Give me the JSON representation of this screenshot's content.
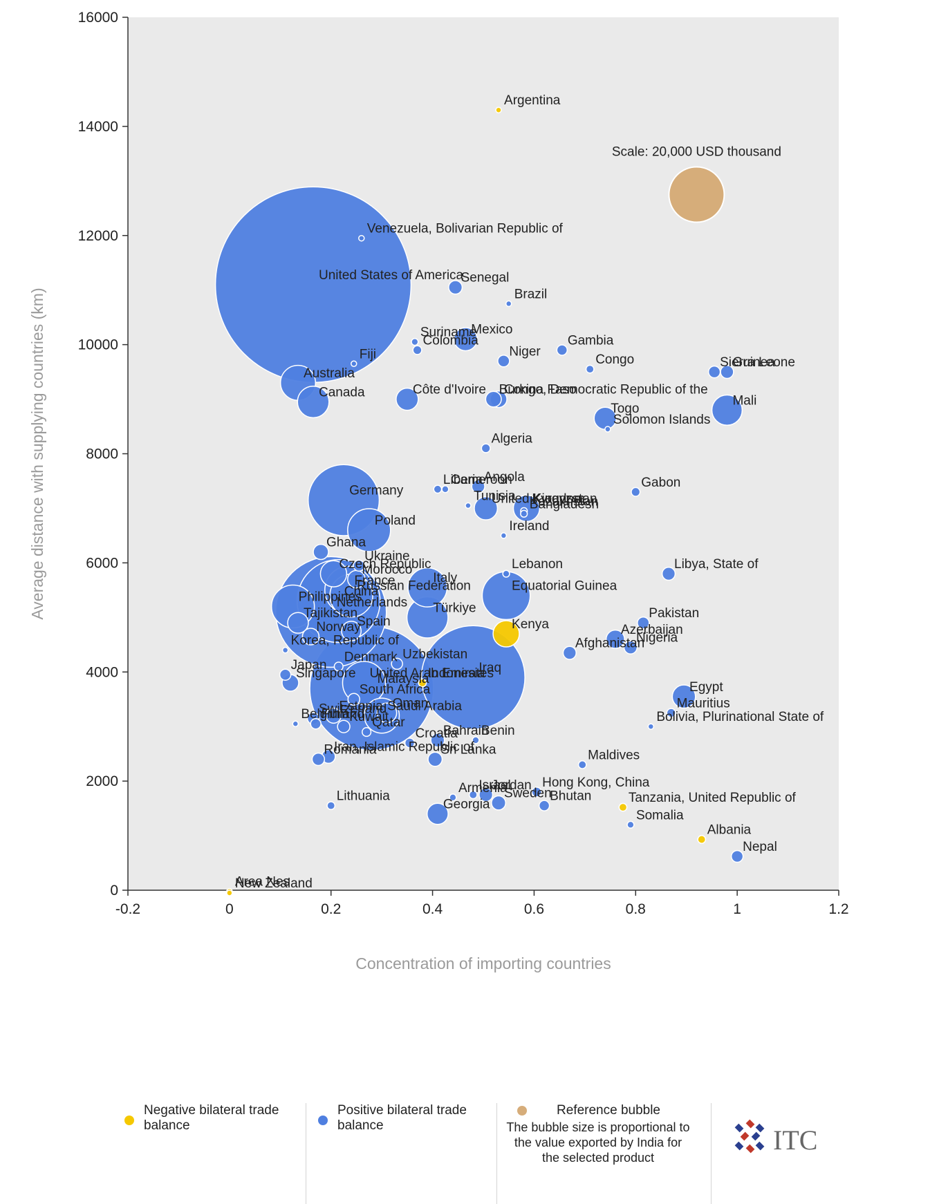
{
  "chart_data": {
    "type": "bubble",
    "xlabel": "Concentration of importing countries",
    "ylabel": "Average distance with supplying countries (km)",
    "xlim": [
      -0.2,
      1.2
    ],
    "ylim": [
      0,
      16000
    ],
    "xticks": [
      "-0.2",
      "0",
      "0.2",
      "0.4",
      "0.6",
      "0.8",
      "1",
      "1.2"
    ],
    "yticks": [
      "0",
      "2000",
      "4000",
      "6000",
      "8000",
      "10000",
      "12000",
      "14000",
      "16000"
    ],
    "scale_label": "Scale: 20,000 USD thousand",
    "reference_bubble_value": 20000,
    "colors": {
      "positive": "#4f7fe0",
      "negative": "#f5c800",
      "reference": "#d6ad7a",
      "plot_bg": "#eaeaea"
    },
    "points": [
      {
        "name": "Argentina",
        "x": 0.53,
        "y": 14300,
        "value": 200,
        "balance": "negative"
      },
      {
        "name": "Venezuela, Bolivarian Republic of",
        "x": 0.26,
        "y": 11950,
        "value": 100,
        "balance": "positive"
      },
      {
        "name": "United States of America",
        "x": 0.165,
        "y": 11100,
        "value": 250000,
        "balance": "positive"
      },
      {
        "name": "Senegal",
        "x": 0.445,
        "y": 11050,
        "value": 1200,
        "balance": "positive"
      },
      {
        "name": "Brazil",
        "x": 0.55,
        "y": 10750,
        "value": 100,
        "balance": "positive"
      },
      {
        "name": "Suriname",
        "x": 0.365,
        "y": 10050,
        "value": 300,
        "balance": "positive"
      },
      {
        "name": "Colombia",
        "x": 0.37,
        "y": 9900,
        "value": 500,
        "balance": "positive"
      },
      {
        "name": "Mexico",
        "x": 0.465,
        "y": 10100,
        "value": 3500,
        "balance": "positive"
      },
      {
        "name": "Niger",
        "x": 0.54,
        "y": 9700,
        "value": 900,
        "balance": "positive"
      },
      {
        "name": "Congo, Democratic Republic of the",
        "x": 0.53,
        "y": 9000,
        "value": 1800,
        "balance": "positive"
      },
      {
        "name": "Gambia",
        "x": 0.655,
        "y": 9900,
        "value": 700,
        "balance": "positive"
      },
      {
        "name": "Congo",
        "x": 0.71,
        "y": 9550,
        "value": 400,
        "balance": "positive"
      },
      {
        "name": "Sierra Leone",
        "x": 0.955,
        "y": 9500,
        "value": 900,
        "balance": "positive"
      },
      {
        "name": "Guinea",
        "x": 0.98,
        "y": 9500,
        "value": 1100,
        "balance": "positive"
      },
      {
        "name": "Fiji",
        "x": 0.245,
        "y": 9650,
        "value": 200,
        "balance": "positive"
      },
      {
        "name": "Côte d'Ivoire",
        "x": 0.35,
        "y": 9000,
        "value": 3200,
        "balance": "positive"
      },
      {
        "name": "Burkina Faso",
        "x": 0.52,
        "y": 9000,
        "value": 1600,
        "balance": "positive"
      },
      {
        "name": "Togo",
        "x": 0.74,
        "y": 8650,
        "value": 3200,
        "balance": "positive"
      },
      {
        "name": "Mali",
        "x": 0.98,
        "y": 8800,
        "value": 6000,
        "balance": "positive"
      },
      {
        "name": "Solomon Islands",
        "x": 0.745,
        "y": 8450,
        "value": 100,
        "balance": "positive"
      },
      {
        "name": "Australia",
        "x": 0.135,
        "y": 9300,
        "value": 8000,
        "balance": "positive"
      },
      {
        "name": "Canada",
        "x": 0.165,
        "y": 8950,
        "value": 6500,
        "balance": "positive"
      },
      {
        "name": "Algeria",
        "x": 0.505,
        "y": 8100,
        "value": 500,
        "balance": "positive"
      },
      {
        "name": "Liberia",
        "x": 0.41,
        "y": 7350,
        "value": 400,
        "balance": "positive"
      },
      {
        "name": "Cameroon",
        "x": 0.425,
        "y": 7350,
        "value": 300,
        "balance": "positive"
      },
      {
        "name": "Angola",
        "x": 0.49,
        "y": 7400,
        "value": 1100,
        "balance": "positive"
      },
      {
        "name": "United Kingdom",
        "x": 0.505,
        "y": 7000,
        "value": 3500,
        "balance": "positive"
      },
      {
        "name": "Kyrgyzstan",
        "x": 0.585,
        "y": 7000,
        "value": 4500,
        "balance": "positive"
      },
      {
        "name": "Kazakhstan",
        "x": 0.58,
        "y": 6950,
        "value": 300,
        "balance": "positive"
      },
      {
        "name": "Gabon",
        "x": 0.8,
        "y": 7300,
        "value": 500,
        "balance": "positive"
      },
      {
        "name": "Germany",
        "x": 0.225,
        "y": 7150,
        "value": 33000,
        "balance": "positive"
      },
      {
        "name": "Poland",
        "x": 0.275,
        "y": 6600,
        "value": 12000,
        "balance": "positive"
      },
      {
        "name": "Morocco",
        "x": 0.25,
        "y": 5700,
        "value": 2000,
        "balance": "positive"
      },
      {
        "name": "Ukraine",
        "x": 0.255,
        "y": 5950,
        "value": 800,
        "balance": "positive"
      },
      {
        "name": "France",
        "x": 0.235,
        "y": 5500,
        "value": 15000,
        "balance": "positive"
      },
      {
        "name": "Ghana",
        "x": 0.18,
        "y": 6200,
        "value": 1500,
        "balance": "positive"
      },
      {
        "name": "China",
        "x": 0.215,
        "y": 5300,
        "value": 45000,
        "balance": "positive"
      },
      {
        "name": "Czech Republic",
        "x": 0.205,
        "y": 5800,
        "value": 4500,
        "balance": "positive"
      },
      {
        "name": "Russian Federation",
        "x": 0.24,
        "y": 5400,
        "value": 12000,
        "balance": "positive"
      },
      {
        "name": "Tunisia",
        "x": 0.47,
        "y": 7050,
        "value": 200,
        "balance": "positive"
      },
      {
        "name": "Italy",
        "x": 0.39,
        "y": 5550,
        "value": 10000,
        "balance": "positive"
      },
      {
        "name": "Bangladesh",
        "x": 0.58,
        "y": 6900,
        "value": 300,
        "balance": "positive"
      },
      {
        "name": "Ireland",
        "x": 0.54,
        "y": 6500,
        "value": 200,
        "balance": "positive"
      },
      {
        "name": "Türkiye",
        "x": 0.39,
        "y": 5000,
        "value": 11000,
        "balance": "positive"
      },
      {
        "name": "Lebanon",
        "x": 0.545,
        "y": 5800,
        "value": 300,
        "balance": "positive"
      },
      {
        "name": "Equatorial Guinea",
        "x": 0.545,
        "y": 5400,
        "value": 15000,
        "balance": "positive"
      },
      {
        "name": "Libya, State of",
        "x": 0.865,
        "y": 5800,
        "value": 1100,
        "balance": "positive"
      },
      {
        "name": "Pakistan",
        "x": 0.815,
        "y": 4900,
        "value": 900,
        "balance": "positive"
      },
      {
        "name": "Kenya",
        "x": 0.545,
        "y": 4700,
        "value": 4500,
        "balance": "negative"
      },
      {
        "name": "Nigeria",
        "x": 0.79,
        "y": 4450,
        "value": 1100,
        "balance": "positive"
      },
      {
        "name": "Azerbaijan",
        "x": 0.76,
        "y": 4600,
        "value": 2200,
        "balance": "positive"
      },
      {
        "name": "Afghanistan",
        "x": 0.67,
        "y": 4350,
        "value": 1100,
        "balance": "positive"
      },
      {
        "name": "Netherlands",
        "x": 0.2,
        "y": 5100,
        "value": 80000,
        "balance": "positive"
      },
      {
        "name": "Philippines",
        "x": 0.125,
        "y": 5200,
        "value": 12000,
        "balance": "positive"
      },
      {
        "name": "Tajikistan",
        "x": 0.135,
        "y": 4900,
        "value": 2800,
        "balance": "positive"
      },
      {
        "name": "Norway",
        "x": 0.16,
        "y": 4650,
        "value": 1800,
        "balance": "positive"
      },
      {
        "name": "Spain",
        "x": 0.24,
        "y": 4750,
        "value": 2500,
        "balance": "positive"
      },
      {
        "name": "Korea, Republic of",
        "x": 0.11,
        "y": 4400,
        "value": 200,
        "balance": "positive"
      },
      {
        "name": "Singapore",
        "x": 0.12,
        "y": 3800,
        "value": 1800,
        "balance": "positive"
      },
      {
        "name": "Japan",
        "x": 0.11,
        "y": 3950,
        "value": 800,
        "balance": "positive"
      },
      {
        "name": "Iraq",
        "x": 0.48,
        "y": 3900,
        "value": 70000,
        "balance": "positive"
      },
      {
        "name": "Indonesia",
        "x": 0.38,
        "y": 3800,
        "value": 400,
        "balance": "negative"
      },
      {
        "name": "Egypt",
        "x": 0.895,
        "y": 3550,
        "value": 3500,
        "balance": "positive"
      },
      {
        "name": "Mauritius",
        "x": 0.87,
        "y": 3250,
        "value": 500,
        "balance": "positive"
      },
      {
        "name": "Bolivia, Plurinational State of",
        "x": 0.83,
        "y": 3000,
        "value": 100,
        "balance": "positive"
      },
      {
        "name": "Malaysia",
        "x": 0.28,
        "y": 3700,
        "value": 100000,
        "balance": "positive"
      },
      {
        "name": "Belgium",
        "x": 0.13,
        "y": 3050,
        "value": 200,
        "balance": "positive"
      },
      {
        "name": "Finland",
        "x": 0.17,
        "y": 3050,
        "value": 700,
        "balance": "positive"
      },
      {
        "name": "Romania",
        "x": 0.175,
        "y": 2400,
        "value": 1000,
        "balance": "positive"
      },
      {
        "name": "Saudi Arabia",
        "x": 0.3,
        "y": 3200,
        "value": 8000,
        "balance": "positive"
      },
      {
        "name": "United Arab Emirates",
        "x": 0.265,
        "y": 3800,
        "value": 12000,
        "balance": "positive"
      },
      {
        "name": "Iran, Islamic Republic of",
        "x": 0.195,
        "y": 2450,
        "value": 1200,
        "balance": "positive"
      },
      {
        "name": "Kuwait",
        "x": 0.225,
        "y": 3000,
        "value": 1000,
        "balance": "positive"
      },
      {
        "name": "Estonia",
        "x": 0.205,
        "y": 3200,
        "value": 1500,
        "balance": "positive"
      },
      {
        "name": "Switzerland",
        "x": 0.165,
        "y": 3150,
        "value": 900,
        "balance": "positive"
      },
      {
        "name": "Denmark",
        "x": 0.215,
        "y": 4100,
        "value": 500,
        "balance": "positive"
      },
      {
        "name": "South Africa",
        "x": 0.245,
        "y": 3500,
        "value": 900,
        "balance": "positive"
      },
      {
        "name": "Lithuania",
        "x": 0.2,
        "y": 1550,
        "value": 400,
        "balance": "positive"
      },
      {
        "name": "Uzbekistan",
        "x": 0.33,
        "y": 4150,
        "value": 800,
        "balance": "positive"
      },
      {
        "name": "Croatia",
        "x": 0.355,
        "y": 2700,
        "value": 600,
        "balance": "positive"
      },
      {
        "name": "Qatar",
        "x": 0.27,
        "y": 2900,
        "value": 500,
        "balance": "positive"
      },
      {
        "name": "Oman",
        "x": 0.31,
        "y": 3250,
        "value": 2500,
        "balance": "positive"
      },
      {
        "name": "Georgia",
        "x": 0.41,
        "y": 1400,
        "value": 2900,
        "balance": "positive"
      },
      {
        "name": "Bahrain",
        "x": 0.41,
        "y": 2750,
        "value": 1200,
        "balance": "positive"
      },
      {
        "name": "Sri Lanka",
        "x": 0.405,
        "y": 2400,
        "value": 1300,
        "balance": "positive"
      },
      {
        "name": "Benin",
        "x": 0.485,
        "y": 2750,
        "value": 300,
        "balance": "positive"
      },
      {
        "name": "Jordan",
        "x": 0.505,
        "y": 1750,
        "value": 1200,
        "balance": "positive"
      },
      {
        "name": "Sweden",
        "x": 0.53,
        "y": 1600,
        "value": 1300,
        "balance": "positive"
      },
      {
        "name": "Israel",
        "x": 0.48,
        "y": 1750,
        "value": 400,
        "balance": "positive"
      },
      {
        "name": "Armenia",
        "x": 0.44,
        "y": 1700,
        "value": 300,
        "balance": "positive"
      },
      {
        "name": "Maldives",
        "x": 0.695,
        "y": 2300,
        "value": 400,
        "balance": "positive"
      },
      {
        "name": "Hong Kong, China",
        "x": 0.605,
        "y": 1800,
        "value": 600,
        "balance": "positive"
      },
      {
        "name": "Bhutan",
        "x": 0.62,
        "y": 1550,
        "value": 700,
        "balance": "positive"
      },
      {
        "name": "Tanzania, United Republic of",
        "x": 0.775,
        "y": 1520,
        "value": 400,
        "balance": "negative"
      },
      {
        "name": "Somalia",
        "x": 0.79,
        "y": 1200,
        "value": 300,
        "balance": "positive"
      },
      {
        "name": "Albania",
        "x": 0.93,
        "y": 930,
        "value": 400,
        "balance": "negative"
      },
      {
        "name": "Nepal",
        "x": 1.0,
        "y": 620,
        "value": 900,
        "balance": "positive"
      },
      {
        "name": "Area Nes",
        "x": 0.0,
        "y": -20,
        "value": 150,
        "balance": "negative"
      },
      {
        "name": "New Zealand",
        "x": 0.0,
        "y": -50,
        "value": 150,
        "balance": "negative"
      }
    ],
    "legend": [
      {
        "label": "Negative bilateral trade balance",
        "color": "#f5c800"
      },
      {
        "label": "Positive bilateral trade balance",
        "color": "#4f7fe0"
      },
      {
        "label": "Reference bubble",
        "note": "The bubble size is proportional to the value exported by India for the selected product",
        "color": "#d6ad7a"
      }
    ],
    "logo_text": "ITC"
  }
}
